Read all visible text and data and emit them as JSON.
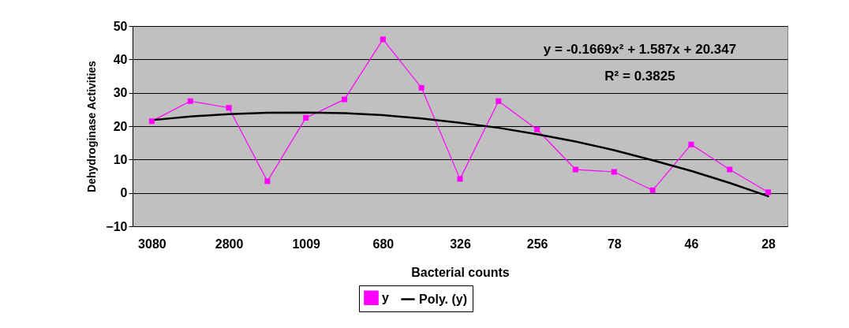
{
  "chart_data": {
    "type": "line",
    "xlabel": "Bacterial counts",
    "ylabel": "Dehydroginase Activities",
    "categories": [
      "3080",
      null,
      "2800",
      null,
      "1009",
      null,
      "680",
      null,
      "326",
      null,
      "256",
      null,
      "78",
      null,
      "46",
      null,
      "28"
    ],
    "series": [
      {
        "name": "y",
        "color": "#ff00ff",
        "marker": "square",
        "values": [
          21.5,
          27.5,
          25.5,
          3.5,
          22.5,
          28,
          46,
          31.5,
          4.2,
          27.5,
          19,
          7,
          6.3,
          0.8,
          14.5,
          7,
          0.2
        ]
      },
      {
        "name": "Poly. (y)",
        "type": "line",
        "color": "#000000",
        "marker": "none",
        "values": [
          21.8,
          22.9,
          23.6,
          24,
          24.1,
          23.9,
          23.3,
          22.3,
          21,
          19.5,
          17.6,
          15.4,
          12.8,
          9.8,
          6.6,
          3,
          -1
        ]
      }
    ],
    "ylim": [
      -10,
      50
    ],
    "yticks": [
      -10,
      0,
      10,
      20,
      30,
      40,
      50
    ],
    "grid": "y",
    "legend": "bottom",
    "annotations": [
      "y = -0.1669x² + 1.587x + 20.347",
      "R² = 0.3825"
    ]
  }
}
